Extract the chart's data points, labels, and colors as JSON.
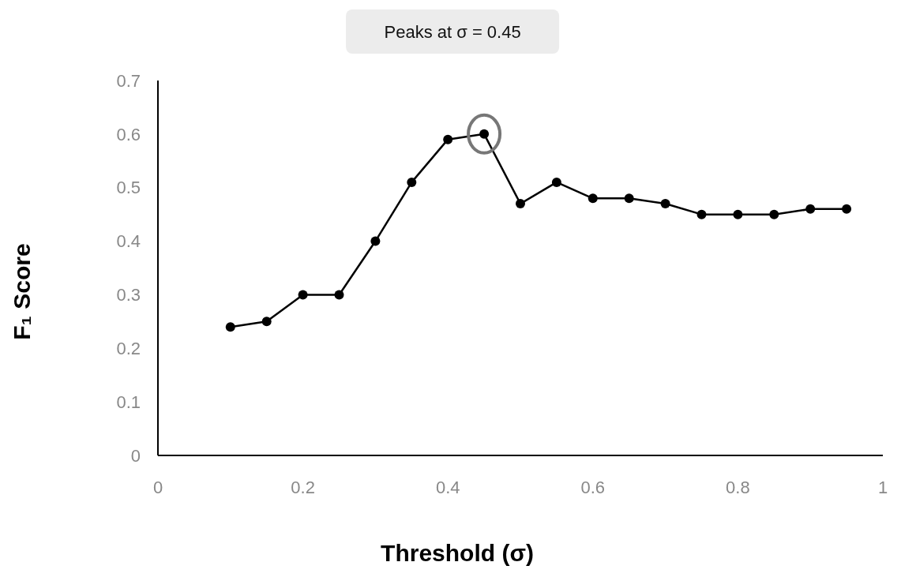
{
  "chart_data": {
    "type": "line",
    "xlabel": "Threshold (σ)",
    "ylabel": "F₁ Score",
    "x": [
      0.1,
      0.15,
      0.2,
      0.25,
      0.3,
      0.35,
      0.4,
      0.45,
      0.5,
      0.55,
      0.6,
      0.65,
      0.7,
      0.75,
      0.8,
      0.85,
      0.9,
      0.95
    ],
    "series": [
      {
        "color": "#000000",
        "values": [
          0.24,
          0.25,
          0.3,
          0.3,
          0.4,
          0.51,
          0.59,
          0.6,
          0.47,
          0.51,
          0.48,
          0.48,
          0.47,
          0.45,
          0.45,
          0.45,
          0.46,
          0.46
        ]
      }
    ],
    "xlim": [
      0,
      1
    ],
    "xticks": [
      0,
      0.2,
      0.4,
      0.6,
      0.8,
      1
    ],
    "ylim": [
      0,
      0.7
    ],
    "yticks": [
      0,
      0.1,
      0.2,
      0.3,
      0.4,
      0.5,
      0.6,
      0.7
    ],
    "marker": "circle",
    "line_style": "solid",
    "grid": false,
    "annotations": [
      "Peaks at σ = 0.45"
    ]
  }
}
